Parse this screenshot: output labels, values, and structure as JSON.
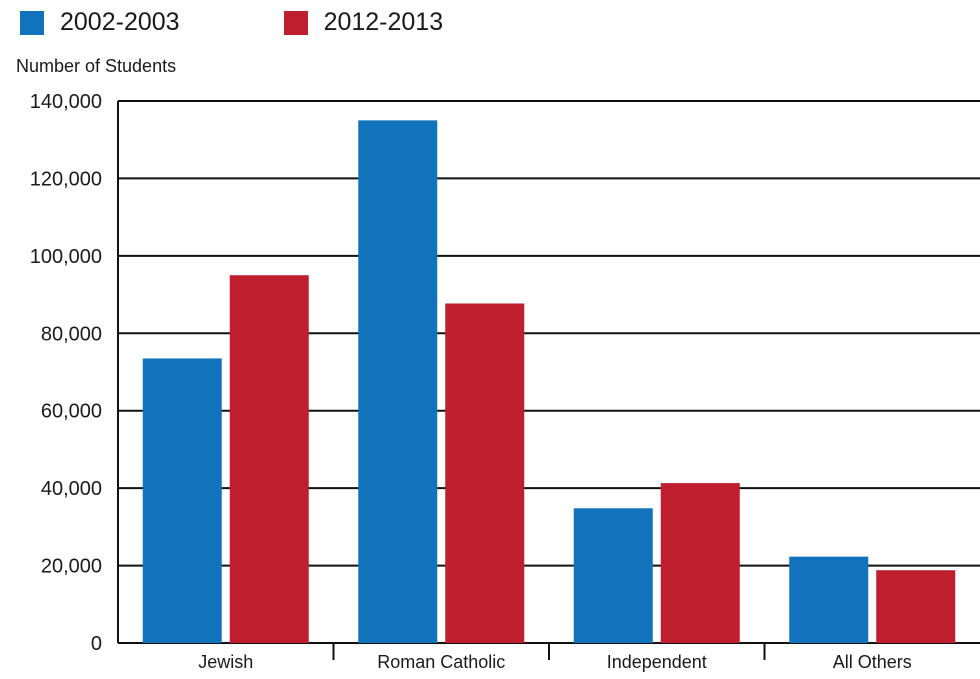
{
  "legend": [
    {
      "label": "2002-2003",
      "color": "#1273bd"
    },
    {
      "label": "2012-2013",
      "color": "#be1e2d"
    }
  ],
  "chart_data": {
    "type": "bar",
    "title": "",
    "xlabel": "",
    "ylabel": "Number of Students",
    "categories": [
      "Jewish",
      "Roman Catholic",
      "Independent",
      "All Others"
    ],
    "series": [
      {
        "name": "2002-2003",
        "color": "#1273bd",
        "values": [
          73500,
          135000,
          34800,
          22300
        ]
      },
      {
        "name": "2012-2013",
        "color": "#be1e2d",
        "values": [
          95000,
          87700,
          41300,
          18800
        ]
      }
    ],
    "ylim": [
      0,
      140000
    ],
    "yticks": [
      0,
      20000,
      40000,
      60000,
      80000,
      100000,
      120000,
      140000
    ],
    "ytick_labels": [
      "0",
      "20,000",
      "40,000",
      "60,000",
      "80,000",
      "100,000",
      "120,000",
      "140,000"
    ],
    "grid": true,
    "legend_position": "top-left"
  }
}
